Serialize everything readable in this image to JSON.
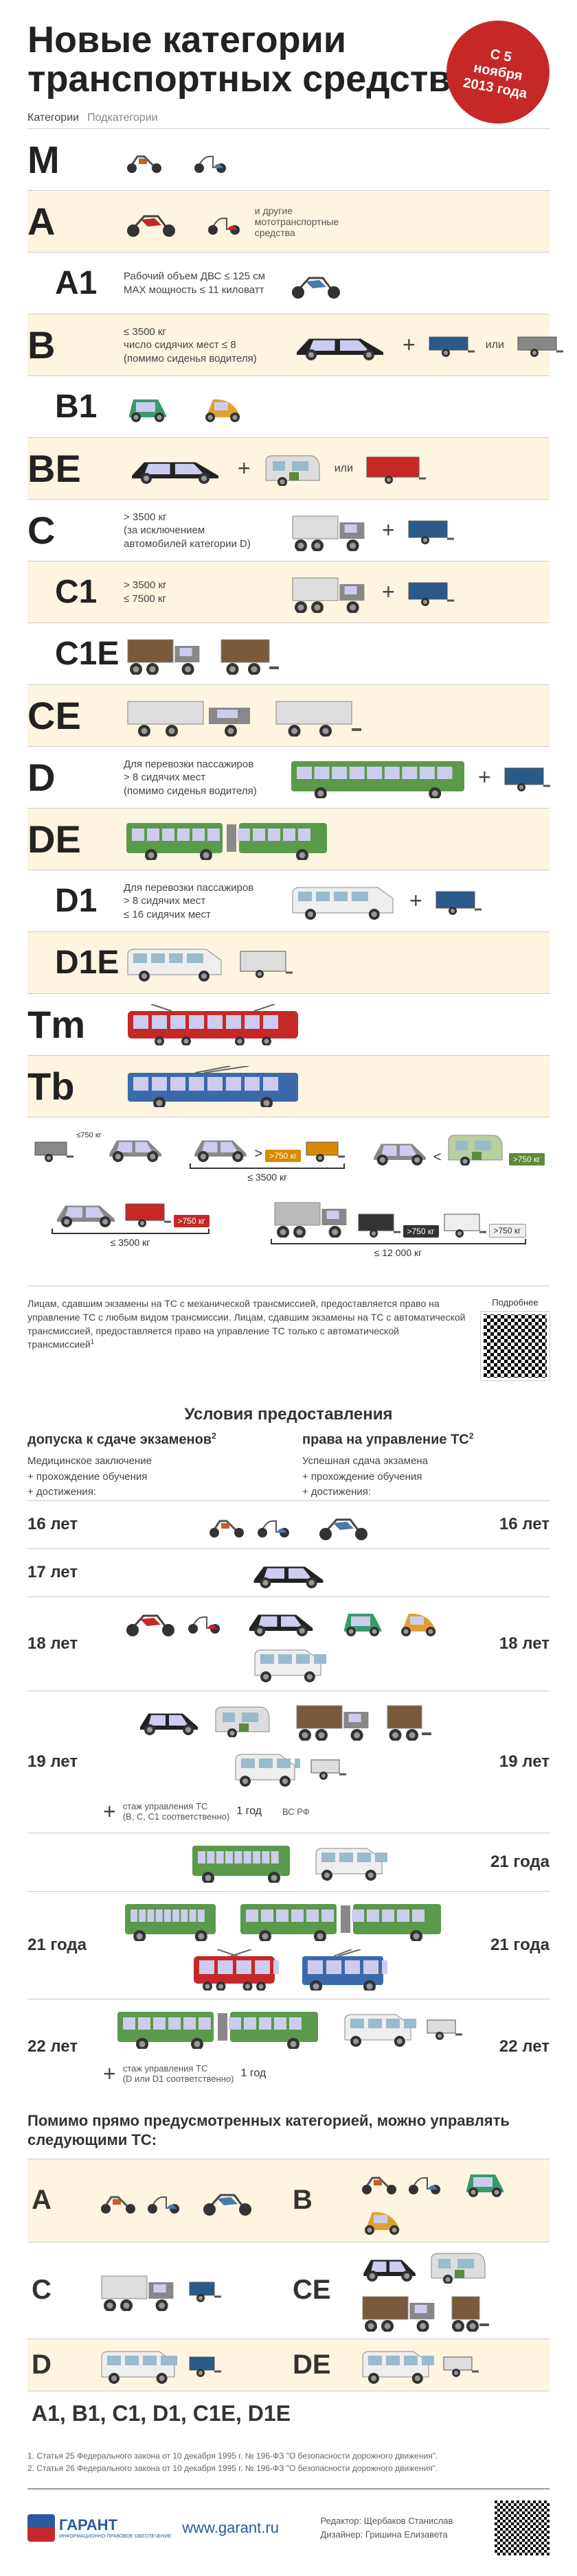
{
  "header": {
    "title_line1": "Новые категории",
    "title_line2": "транспортных средств",
    "badge_line1": "С 5 ноября",
    "badge_line2": "2013 года"
  },
  "col_cat": "Категории",
  "col_sub": "Подкатегории",
  "categories": [
    {
      "code": "M",
      "shaded": false,
      "sub": false,
      "desc": "",
      "note": ""
    },
    {
      "code": "A",
      "shaded": true,
      "sub": false,
      "desc": "",
      "note": "и другие мототранспортные средства"
    },
    {
      "code": "A1",
      "shaded": false,
      "sub": true,
      "desc": "Рабочий объем ДВС ≤ 125 см\nMAX мощность ≤ 11 киловатт",
      "note": ""
    },
    {
      "code": "B",
      "shaded": true,
      "sub": false,
      "desc": "≤ 3500 кг\nчисло сидячих мест ≤ 8\n(помимо сиденья водителя)",
      "plus": true,
      "or": "или"
    },
    {
      "code": "B1",
      "shaded": false,
      "sub": true,
      "desc": ""
    },
    {
      "code": "BE",
      "shaded": true,
      "sub": false,
      "desc": "",
      "plus": true,
      "or": "или"
    },
    {
      "code": "C",
      "shaded": false,
      "sub": false,
      "desc": "> 3500 кг\n(за исключением\nавтомобилей категории D)",
      "plus": true
    },
    {
      "code": "C1",
      "shaded": true,
      "sub": true,
      "desc": "> 3500 кг\n≤ 7500 кг",
      "plus": true
    },
    {
      "code": "C1E",
      "shaded": false,
      "sub": true,
      "desc": ""
    },
    {
      "code": "CE",
      "shaded": true,
      "sub": false,
      "desc": ""
    },
    {
      "code": "D",
      "shaded": false,
      "sub": false,
      "desc": "Для перевозки пассажиров\n> 8 сидячих мест\n(помимо сиденья водителя)",
      "plus": true
    },
    {
      "code": "DE",
      "shaded": true,
      "sub": false,
      "desc": ""
    },
    {
      "code": "D1",
      "shaded": false,
      "sub": true,
      "desc": "Для перевозки пассажиров\n> 8 сидячих мест\n≤ 16 сидячих мест",
      "plus": true
    },
    {
      "code": "D1E",
      "shaded": true,
      "sub": true,
      "desc": ""
    },
    {
      "code": "Tm",
      "shaded": false,
      "sub": false,
      "desc": ""
    },
    {
      "code": "Tb",
      "shaded": true,
      "sub": false,
      "desc": ""
    }
  ],
  "weights": {
    "row1": [
      {
        "car": "#888",
        "trailer": "#888",
        "trailer_tag": "≤ 750 кг",
        "tag_class": "",
        "bracket": "≤ 3500 кг"
      },
      {
        "car": "#888",
        "trailer": "#d88a00",
        "trailer_tag": "> 750 кг",
        "tag_class": "w-orange",
        "bracket": "≤ 3500 кг",
        "op": ">"
      },
      {
        "car": "#888",
        "trailer": "#5a8a3a",
        "trailer_tag": "> 750 кг",
        "tag_class": "",
        "bracket": "",
        "op": "<",
        "cmp": true
      }
    ],
    "row2": [
      {
        "car": "#888",
        "trailer": "#c62828",
        "trailer_tag": "> 750 кг",
        "tag_class": "w-red",
        "bracket": "≤ 3500 кг"
      },
      {
        "truck": "#888",
        "trailer_dark": "> 750 кг",
        "trailer_light": "> 750 кг",
        "bracket": "≤ 12 000 кг"
      }
    ]
  },
  "transmission_note": "Лицам, сдавшим экзамены на ТС с механической трансмиссией, предоставляется право на управление ТС с любым видом трансмиссии. Лицам, сдавшим экзамены на ТС с автоматической трансмиссией, предоставляется право на управление ТС только с автоматической трансмиссией",
  "qr_more": "Подробнее",
  "conditions": {
    "title": "Условия предоставления",
    "left_heading": "допуска к сдаче экзаменов",
    "right_heading": "права на управление ТС",
    "sup": "2",
    "left_items": [
      "Медицинское заключение",
      "+ прохождение обучения",
      "+ достижения:"
    ],
    "right_items": [
      "Успешная сдача экзамена",
      "+ прохождение обучения",
      "+ достижения:"
    ]
  },
  "ages": [
    {
      "left": "16 лет",
      "right": "16 лет"
    },
    {
      "left": "17 лет",
      "right": ""
    },
    {
      "left": "18 лет",
      "right": "18 лет"
    },
    {
      "left": "19 лет",
      "right": "19 лет",
      "note_top": "стаж управления ТС\n(B, C, C1 соответственно)",
      "note_mid": "1 год",
      "note_bot": "ВС РФ",
      "plus": true
    },
    {
      "left": "",
      "right": "21 года",
      "only_right_vis": true
    },
    {
      "left": "21 года",
      "right": "21 года"
    },
    {
      "left": "22 лет",
      "right": "22 лет",
      "note_top": "стаж управления ТС\n(D или D1 соответственно)",
      "note_mid": "1 год",
      "plus": true
    }
  ],
  "also_title": "Помимо прямо предусмотренных категорией, можно управлять следующими ТС:",
  "also_grid": [
    {
      "code": "A",
      "shaded": true
    },
    {
      "code": "B",
      "shaded": true
    },
    {
      "code": "C",
      "shaded": false
    },
    {
      "code": "CE",
      "shaded": false
    },
    {
      "code": "D",
      "shaded": true
    },
    {
      "code": "DE",
      "shaded": true
    }
  ],
  "also_full": "A1, B1, C1, D1, C1E, D1E",
  "footnotes": [
    "1. Статья 25 Федерального закона от 10 декабря 1995 г. № 196-ФЗ \"О безопасности дорожного движения\".",
    "2. Статья 26 Федерального закона от 10 декабря 1995 г. № 196-ФЗ \"О безопасности дорожного движения\"."
  ],
  "footer": {
    "logo": "ГАРАНТ",
    "logo_sub": "ИНФОРМАЦИОННО-ПРАВОВОЕ ОБЕСПЕЧЕНИЕ",
    "url": "www.garant.ru",
    "editor": "Редактор: Щербаков Станислав",
    "designer": "Дизайнер: Гришина Елизавета"
  },
  "colors": {
    "shaded_bg": "#fdf5e0",
    "badge": "#c62828",
    "line": "#cccccc",
    "text": "#333333"
  }
}
